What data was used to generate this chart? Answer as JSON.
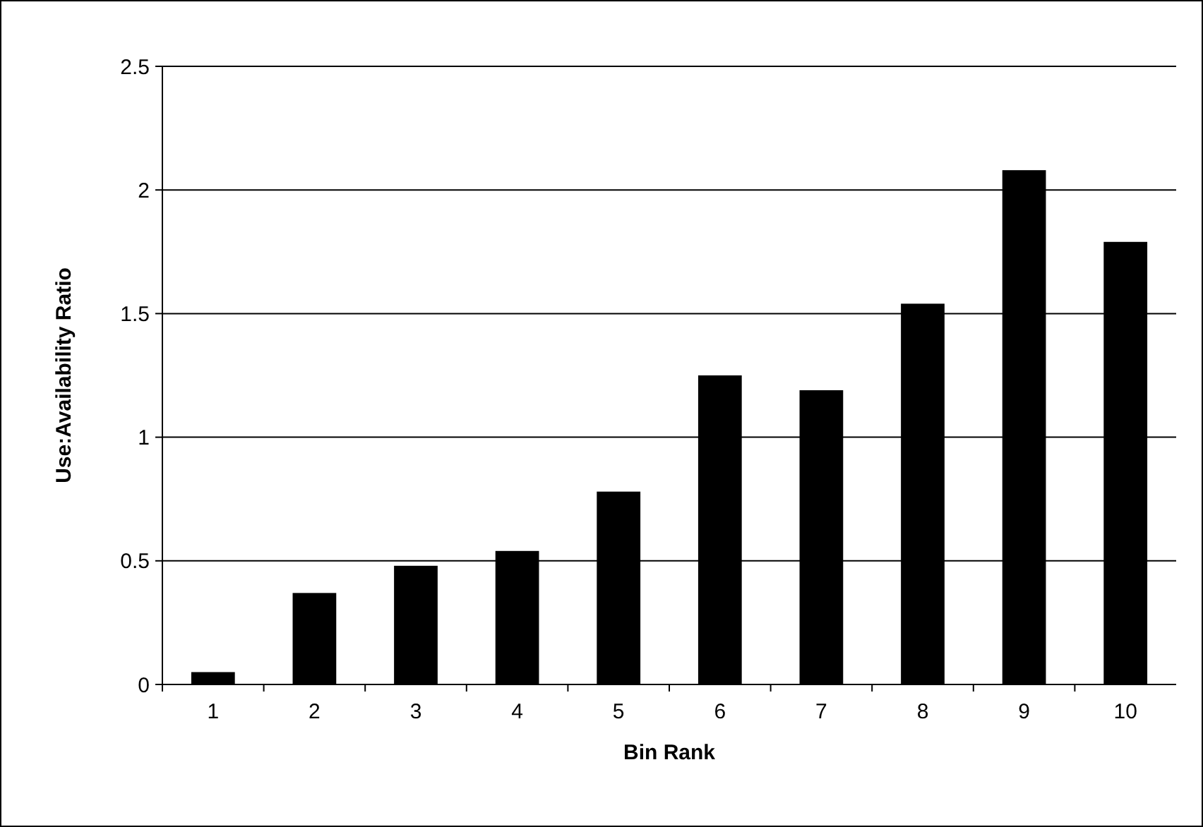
{
  "chart_data": {
    "type": "bar",
    "xlabel": "Bin Rank",
    "ylabel": "Use:Availability Ratio",
    "categories": [
      "1",
      "2",
      "3",
      "4",
      "5",
      "6",
      "7",
      "8",
      "9",
      "10"
    ],
    "values": [
      0.05,
      0.37,
      0.48,
      0.54,
      0.78,
      1.25,
      1.19,
      1.54,
      2.08,
      1.79
    ],
    "color": "#000000",
    "ylim": [
      0,
      2.5
    ],
    "yticks": [
      0,
      0.5,
      1,
      1.5,
      2,
      2.5
    ],
    "grid": "y"
  }
}
